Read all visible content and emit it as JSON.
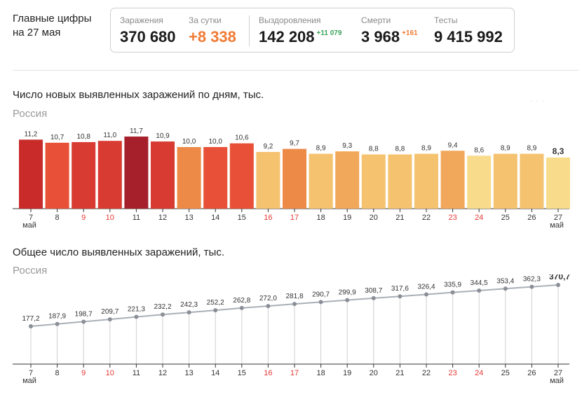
{
  "header": {
    "title_line1": "Главные цифры",
    "title_line2": "на 27 мая"
  },
  "stats": {
    "infections": {
      "label": "Заражения",
      "value": "370 680"
    },
    "daily": {
      "label": "За сутки",
      "value": "+8 338"
    },
    "recovered": {
      "label": "Выздоровления",
      "value": "142 208",
      "delta": "+11 079"
    },
    "deaths": {
      "label": "Смерти",
      "value": "3 968",
      "delta": "+161"
    },
    "tests": {
      "label": "Тесты",
      "value": "9 415 992"
    }
  },
  "colors": {
    "bar_scale": [
      "#a6202b",
      "#c92b2b",
      "#d83b31",
      "#e85138",
      "#ee8a48",
      "#f2a85a",
      "#f5c26f",
      "#f8dc8c"
    ],
    "weekend_label": "#e53935",
    "line": "#aab0b8",
    "dot": "#8a8f97"
  },
  "chart_data": [
    {
      "type": "bar",
      "title": "Число новых выявленных заражений по дням, тыс.",
      "subtitle": "Россия",
      "categories": [
        "7",
        "8",
        "9",
        "10",
        "11",
        "12",
        "13",
        "14",
        "15",
        "16",
        "17",
        "18",
        "19",
        "20",
        "21",
        "22",
        "23",
        "24",
        "25",
        "26",
        "27"
      ],
      "month_label": "май",
      "weekend_categories": [
        "9",
        "10",
        "16",
        "17",
        "23",
        "24"
      ],
      "values": [
        11.2,
        10.7,
        10.8,
        11.0,
        11.7,
        10.9,
        10.0,
        10.0,
        10.6,
        9.2,
        9.7,
        8.9,
        9.3,
        8.8,
        8.8,
        8.9,
        9.4,
        8.6,
        8.9,
        8.9,
        8.3
      ],
      "value_labels": [
        "11,2",
        "10,7",
        "10,8",
        "11,0",
        "11,7",
        "10,9",
        "10,0",
        "10,0",
        "10,6",
        "9,2",
        "9,7",
        "8,9",
        "9,3",
        "8,8",
        "8,8",
        "8,9",
        "9,4",
        "8,6",
        "8,9",
        "8,9",
        "8,3"
      ],
      "color_levels": [
        1,
        3,
        2,
        2,
        0,
        2,
        4,
        3,
        3,
        6,
        4,
        6,
        5,
        6,
        6,
        6,
        5,
        7,
        6,
        6,
        7
      ],
      "ylim": [
        0,
        12.5
      ],
      "grid": false
    },
    {
      "type": "line",
      "title": "Общее число выявленных заражений, тыс.",
      "subtitle": "Россия",
      "categories": [
        "7",
        "8",
        "9",
        "10",
        "11",
        "12",
        "13",
        "14",
        "15",
        "16",
        "17",
        "18",
        "19",
        "20",
        "21",
        "22",
        "23",
        "24",
        "25",
        "26",
        "27"
      ],
      "month_label": "май",
      "weekend_categories": [
        "9",
        "10",
        "16",
        "17",
        "23",
        "24"
      ],
      "values": [
        177.2,
        187.9,
        198.7,
        209.7,
        221.3,
        232.2,
        242.3,
        252.2,
        262.8,
        272.0,
        281.8,
        290.7,
        299.9,
        308.7,
        317.6,
        326.4,
        335.9,
        344.5,
        353.4,
        362.3,
        370.7
      ],
      "value_labels": [
        "177,2",
        "187,9",
        "198,7",
        "209,7",
        "221,3",
        "232,2",
        "242,3",
        "252,2",
        "262,8",
        "272,0",
        "281,8",
        "290,7",
        "299,9",
        "308,7",
        "317,6",
        "326,4",
        "335,9",
        "344,5",
        "353,4",
        "362,3",
        "370,7"
      ],
      "ylim": [
        0,
        1050
      ],
      "grid": "vertical"
    }
  ]
}
